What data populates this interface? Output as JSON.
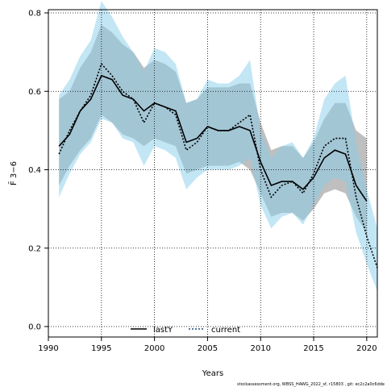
{
  "chart_data": {
    "type": "line",
    "xlabel": "Years",
    "ylabel": "F̄ 3−6",
    "xlim": [
      1990,
      2021
    ],
    "ylim": [
      0,
      0.8
    ],
    "x_ticks": [
      1990,
      1995,
      2000,
      2005,
      2010,
      2015,
      2020
    ],
    "y_ticks": [
      "0.0",
      "0.2",
      "0.4",
      "0.6",
      "0.8"
    ],
    "grid": true,
    "legend_position": "bottom-center",
    "x": [
      1991,
      1992,
      1993,
      1994,
      1995,
      1996,
      1997,
      1998,
      1999,
      2000,
      2001,
      2002,
      2003,
      2004,
      2005,
      2006,
      2007,
      2008,
      2009,
      2010,
      2011,
      2012,
      2013,
      2014,
      2015,
      2016,
      2017,
      2018,
      2019,
      2020
    ],
    "series": [
      {
        "name": "lastY",
        "color": "#000000",
        "band_color": "#a9a9a9",
        "style": "solid",
        "values": [
          0.46,
          0.49,
          0.55,
          0.58,
          0.64,
          0.63,
          0.59,
          0.58,
          0.55,
          0.57,
          0.56,
          0.55,
          0.47,
          0.48,
          0.51,
          0.5,
          0.5,
          0.51,
          0.5,
          0.42,
          0.36,
          0.37,
          0.37,
          0.35,
          0.38,
          0.43,
          0.45,
          0.44,
          0.36,
          0.32
        ],
        "lower": [
          0.36,
          0.41,
          0.45,
          0.48,
          0.54,
          0.52,
          0.49,
          0.48,
          0.46,
          0.48,
          0.47,
          0.46,
          0.39,
          0.4,
          0.41,
          0.41,
          0.41,
          0.42,
          0.4,
          0.34,
          0.28,
          0.29,
          0.29,
          0.27,
          0.3,
          0.34,
          0.35,
          0.34,
          0.28,
          0.24
        ],
        "upper": [
          0.58,
          0.6,
          0.66,
          0.7,
          0.77,
          0.75,
          0.72,
          0.7,
          0.66,
          0.68,
          0.67,
          0.65,
          0.57,
          0.58,
          0.61,
          0.61,
          0.61,
          0.62,
          0.62,
          0.52,
          0.45,
          0.46,
          0.46,
          0.43,
          0.47,
          0.53,
          0.57,
          0.57,
          0.5,
          0.48
        ]
      },
      {
        "name": "current",
        "color": "#1f4e79",
        "band_color": "#87ceeb",
        "style": "dotted",
        "values": [
          0.44,
          0.5,
          0.55,
          0.59,
          0.67,
          0.64,
          0.6,
          0.58,
          0.52,
          0.57,
          0.56,
          0.54,
          0.45,
          0.47,
          0.51,
          0.5,
          0.5,
          0.52,
          0.54,
          0.4,
          0.33,
          0.36,
          0.37,
          0.34,
          0.39,
          0.46,
          0.48,
          0.48,
          0.33,
          0.23,
          0.15
        ],
        "x": [
          1991,
          1992,
          1993,
          1994,
          1995,
          1996,
          1997,
          1998,
          1999,
          2000,
          2001,
          2002,
          2003,
          2004,
          2005,
          2006,
          2007,
          2008,
          2009,
          2010,
          2011,
          2012,
          2013,
          2014,
          2015,
          2016,
          2017,
          2018,
          2019,
          2020,
          2021
        ],
        "lower": [
          0.33,
          0.39,
          0.44,
          0.47,
          0.53,
          0.52,
          0.48,
          0.47,
          0.41,
          0.46,
          0.45,
          0.43,
          0.35,
          0.38,
          0.4,
          0.4,
          0.4,
          0.41,
          0.43,
          0.31,
          0.25,
          0.28,
          0.29,
          0.26,
          0.31,
          0.36,
          0.38,
          0.37,
          0.24,
          0.16,
          0.09
        ],
        "upper": [
          0.59,
          0.63,
          0.69,
          0.73,
          0.83,
          0.79,
          0.74,
          0.7,
          0.65,
          0.71,
          0.7,
          0.67,
          0.57,
          0.58,
          0.63,
          0.62,
          0.62,
          0.64,
          0.68,
          0.5,
          0.43,
          0.46,
          0.47,
          0.43,
          0.48,
          0.58,
          0.62,
          0.64,
          0.47,
          0.35,
          0.25
        ]
      }
    ]
  },
  "footer": "stockassessment.org, WBSS_HAWG_2022_sf, r15803 , git: ec2c2a0c6dde"
}
